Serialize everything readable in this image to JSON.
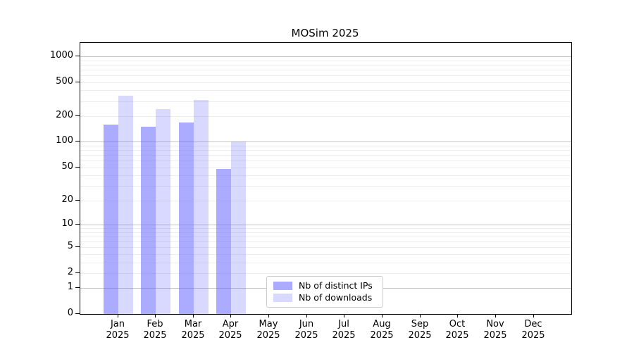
{
  "title": "MOSim 2025",
  "chart_data": {
    "type": "bar",
    "title": "MOSim 2025",
    "x_categories": [
      {
        "month": "Jan",
        "year": "2025"
      },
      {
        "month": "Feb",
        "year": "2025"
      },
      {
        "month": "Mar",
        "year": "2025"
      },
      {
        "month": "Apr",
        "year": "2025"
      },
      {
        "month": "May",
        "year": "2025"
      },
      {
        "month": "Jun",
        "year": "2025"
      },
      {
        "month": "Jul",
        "year": "2025"
      },
      {
        "month": "Aug",
        "year": "2025"
      },
      {
        "month": "Sep",
        "year": "2025"
      },
      {
        "month": "Oct",
        "year": "2025"
      },
      {
        "month": "Nov",
        "year": "2025"
      },
      {
        "month": "Dec",
        "year": "2025"
      }
    ],
    "series": [
      {
        "name": "Nb of distinct IPs",
        "color": "rgba(102,102,255,0.55)",
        "values": [
          160,
          150,
          170,
          48,
          null,
          null,
          null,
          null,
          null,
          null,
          null,
          null
        ]
      },
      {
        "name": "Nb of downloads",
        "color": "rgba(102,102,255,0.25)",
        "values": [
          345,
          240,
          310,
          100,
          null,
          null,
          null,
          null,
          null,
          null,
          null,
          null
        ]
      }
    ],
    "y_axis": {
      "scale": "log1p",
      "ticks": [
        0,
        1,
        2,
        5,
        10,
        20,
        50,
        100,
        200,
        500,
        1000
      ],
      "max_log10": 3.156,
      "major_gridlines": [
        1,
        10,
        100,
        1000
      ],
      "minor_gridlines": [
        2,
        3,
        4,
        5,
        6,
        7,
        8,
        9,
        20,
        30,
        40,
        50,
        60,
        70,
        80,
        90,
        200,
        300,
        400,
        500,
        600,
        700,
        800,
        900
      ]
    },
    "grid": "horizontal major+minor",
    "legend_position": "lower-center-inside"
  },
  "legend": {
    "items": [
      {
        "label": "Nb of distinct IPs",
        "color": "rgba(102,102,255,0.55)"
      },
      {
        "label": "Nb of downloads",
        "color": "rgba(102,102,255,0.25)"
      }
    ]
  },
  "colors": {
    "bar_dark": "rgba(102,102,255,0.55)",
    "bar_light": "rgba(102,102,255,0.25)",
    "grid_major": "#c3c3c3",
    "grid_minor": "#ededed",
    "axis": "#000000",
    "background": "#ffffff"
  }
}
